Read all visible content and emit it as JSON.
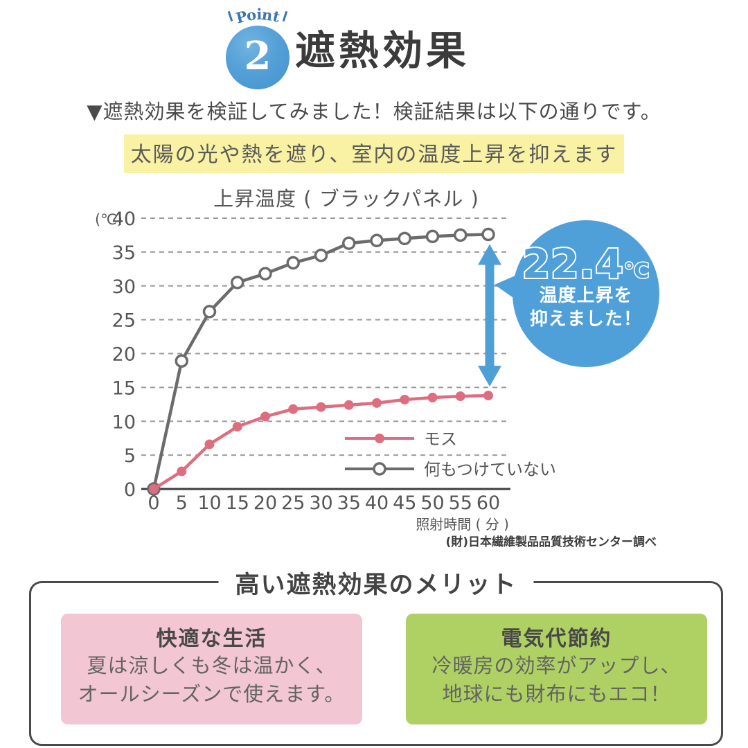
{
  "badge": {
    "label": "Point",
    "number": "2",
    "circle_color": "#4e9bd5",
    "label_color": "#3a75b5"
  },
  "title": "遮熱効果",
  "intro": "▼遮熱効果を検証してみました！検証結果は以下の通りです。",
  "highlight": {
    "text": "太陽の光や熱を遮り、室内の温度上昇を抑えます",
    "bg": "#f9f1a4"
  },
  "chart_data": {
    "type": "line",
    "title": "上昇温度 ( ブラックパネル )",
    "x": [
      0,
      5,
      10,
      15,
      20,
      25,
      30,
      35,
      40,
      45,
      50,
      55,
      60
    ],
    "xlabel": "照射時間 ( 分 )",
    "y_unit": "(℃)",
    "ylim": [
      0,
      40
    ],
    "ytick_step": 5,
    "grid": "horizontal-dashed",
    "legend_position": "inside-lower-right",
    "series": [
      {
        "name": "モス",
        "marker": "filled-circle",
        "color": "#de6e7f",
        "values": [
          0,
          2.6,
          6.6,
          9.2,
          10.7,
          11.8,
          12.1,
          12.4,
          12.7,
          13.2,
          13.5,
          13.7,
          13.8
        ]
      },
      {
        "name": "何もつけていない",
        "marker": "open-circle",
        "color": "#6b6b6b",
        "values": [
          0,
          18.9,
          26.2,
          30.5,
          31.8,
          33.4,
          34.5,
          36.3,
          36.7,
          37.0,
          37.3,
          37.5,
          37.6
        ]
      }
    ],
    "source": "(財)日本繊維製品品質技術センター調べ"
  },
  "callout": {
    "value": "22.4",
    "unit": "℃",
    "line1": "温度上昇を",
    "line2": "抑えました！",
    "bubble_color": "#4fa0d8",
    "arrow_color": "#4f9fd7"
  },
  "merits": {
    "title": "高い遮熱効果のメリット",
    "cards": [
      {
        "title": "快適な生活",
        "line1": "夏は涼しくも冬は温かく、",
        "line2": "オールシーズンで使えます。",
        "bg": "#f2c6d3"
      },
      {
        "title": "電気代節約",
        "line1": "冷暖房の効率がアップし、",
        "line2": "地球にも財布にもエコ！",
        "bg": "#afd164"
      }
    ]
  }
}
